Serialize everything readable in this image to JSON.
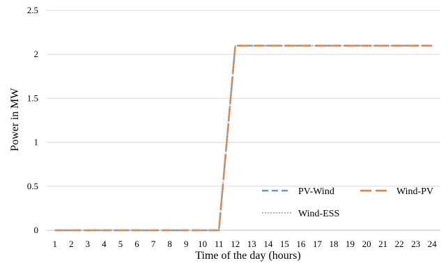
{
  "chart_data": {
    "type": "line",
    "title": "",
    "xlabel": "Time of the day  (hours)",
    "ylabel": "Power in MW",
    "ylim": [
      0,
      2.5
    ],
    "y_ticks": [
      "0",
      "0.5",
      "1",
      "1.5",
      "2",
      "2.5"
    ],
    "x": [
      "1",
      "2",
      "3",
      "4",
      "5",
      "6",
      "7",
      "8",
      "9",
      "10",
      "11",
      "12",
      "13",
      "14",
      "15",
      "16",
      "17",
      "18",
      "19",
      "20",
      "21",
      "22",
      "23",
      "24"
    ],
    "grid": "horizontal",
    "legend_position": "bottom-right",
    "series": [
      {
        "name": "PV-Wind",
        "color": "#5b9bd5",
        "style": "dashed",
        "values": [
          0,
          0,
          0,
          0,
          0,
          0,
          0,
          0,
          0,
          0,
          0,
          2.1,
          2.1,
          2.1,
          2.1,
          2.1,
          2.1,
          2.1,
          2.1,
          2.1,
          2.1,
          2.1,
          2.1,
          2.1
        ]
      },
      {
        "name": "Wind-PV",
        "color": "#ed7d31",
        "style": "long-dashed",
        "values": [
          0,
          0,
          0,
          0,
          0,
          0,
          0,
          0,
          0,
          0,
          0,
          2.1,
          2.1,
          2.1,
          2.1,
          2.1,
          2.1,
          2.1,
          2.1,
          2.1,
          2.1,
          2.1,
          2.1,
          2.1
        ]
      },
      {
        "name": "Wind-ESS",
        "color": "#a5a5a5",
        "style": "dotted",
        "values": [
          0,
          0,
          0,
          0,
          0,
          0,
          0,
          0,
          0,
          0,
          0,
          2.1,
          2.1,
          2.1,
          2.1,
          2.1,
          2.1,
          2.1,
          2.1,
          2.1,
          2.1,
          2.1,
          2.1,
          2.1
        ]
      }
    ]
  }
}
